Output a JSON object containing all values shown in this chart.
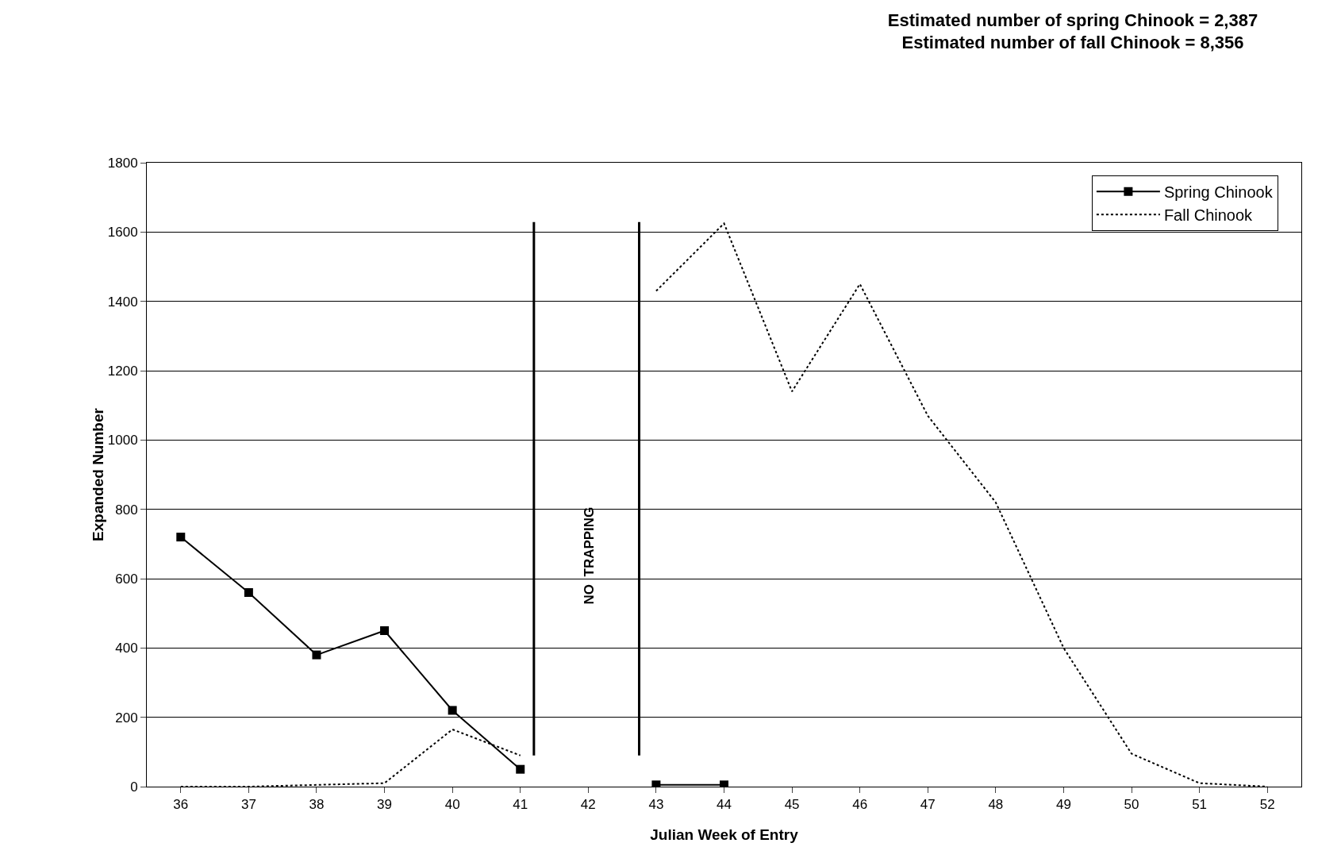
{
  "chart_data": {
    "type": "line",
    "title": "Estimated number of spring Chinook = 2,387\nEstimated number of fall Chinook = 8,356",
    "xlabel": "Julian Week of Entry",
    "ylabel": "Expanded Number",
    "x": [
      36,
      37,
      38,
      39,
      40,
      41,
      42,
      43,
      44,
      45,
      46,
      47,
      48,
      49,
      50,
      51,
      52
    ],
    "xlim": [
      35.5,
      52.5
    ],
    "xticks": [
      36,
      37,
      38,
      39,
      40,
      41,
      42,
      43,
      44,
      45,
      46,
      47,
      48,
      49,
      50,
      51,
      52
    ],
    "ylim": [
      0,
      1800
    ],
    "yticks": [
      0,
      200,
      400,
      600,
      800,
      1000,
      1200,
      1400,
      1600,
      1800
    ],
    "series": [
      {
        "name": "Spring Chinook",
        "color": "#000000",
        "marker": "square",
        "line_style": "solid",
        "values": [
          720,
          560,
          380,
          450,
          220,
          50,
          null,
          5,
          5,
          null,
          null,
          null,
          null,
          null,
          null,
          null,
          null
        ]
      },
      {
        "name": "Fall Chinook",
        "color": "#000000",
        "marker": "none",
        "line_style": "dotted",
        "values": [
          0,
          0,
          5,
          10,
          165,
          90,
          null,
          1430,
          1625,
          1140,
          1450,
          1070,
          820,
          400,
          95,
          10,
          0
        ]
      }
    ],
    "ref_lines": [
      {
        "axis": "x",
        "value": 41.2,
        "color": "#000000"
      },
      {
        "axis": "x",
        "value": 42.75,
        "color": "#000000"
      }
    ],
    "annotations": [
      "NO  TRAPPING"
    ],
    "grid": "y",
    "legend": "top right"
  }
}
